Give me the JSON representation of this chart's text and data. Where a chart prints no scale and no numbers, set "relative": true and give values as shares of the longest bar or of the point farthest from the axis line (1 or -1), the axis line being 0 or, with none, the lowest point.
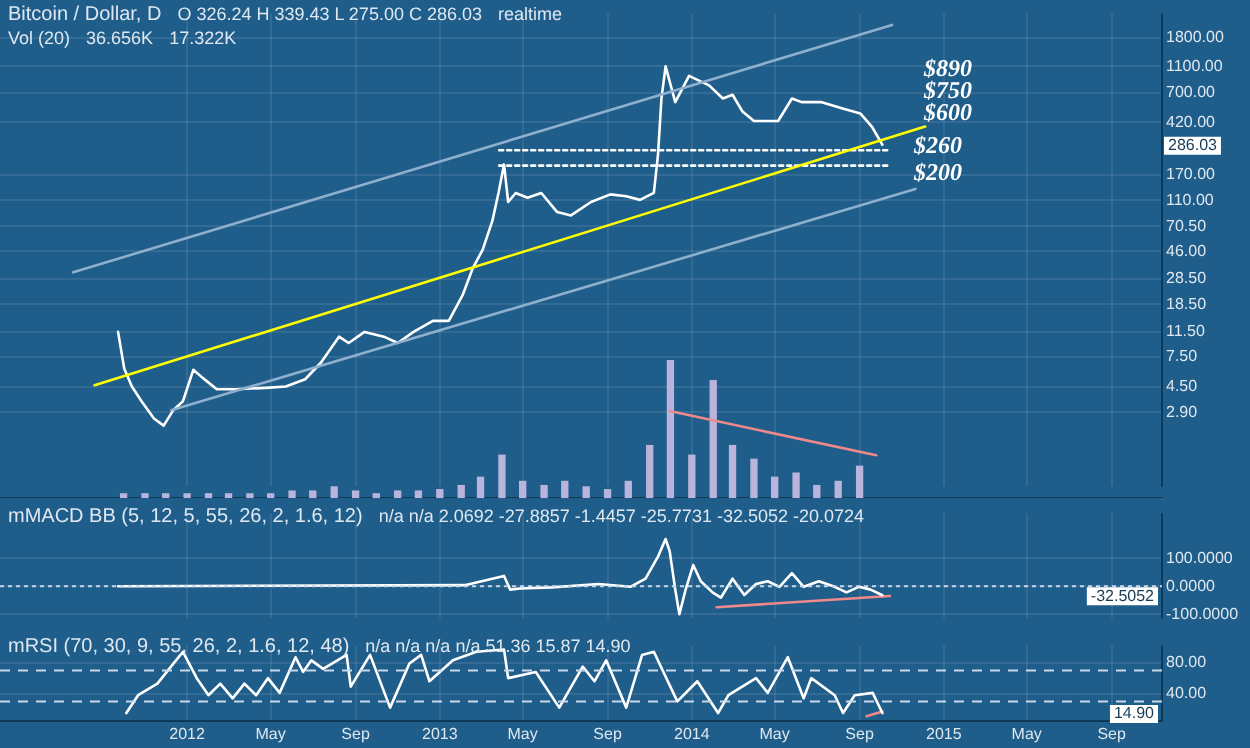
{
  "chart_data": [
    {
      "type": "line",
      "title": "Bitcoin / Dollar, D",
      "log": true,
      "grid": true,
      "tick_labels": "y",
      "annotations": [
        "O 326.24 H 339.43 L 275.00 C 286.03",
        "realtime",
        "$890",
        "$750",
        "$600",
        "286.03"
      ],
      "xlim": [
        "2011-04-05",
        "2015-11-13"
      ],
      "xticks": [
        {
          "value": "2012-01-01",
          "label": null
        },
        {
          "value": "2012-05-01",
          "label": null
        },
        {
          "value": "2012-09-01",
          "label": null
        },
        {
          "value": "2013-01-01",
          "label": null
        },
        {
          "value": "2013-05-01",
          "label": null
        },
        {
          "value": "2013-09-01",
          "label": null
        },
        {
          "value": "2014-01-01",
          "label": null
        },
        {
          "value": "2014-05-01",
          "label": null
        },
        {
          "value": "2014-09-01",
          "label": null
        },
        {
          "value": "2015-01-01",
          "label": null
        },
        {
          "value": "2015-05-01",
          "label": null
        },
        {
          "value": "2015-09-01",
          "label": null
        }
      ],
      "ylim": [
        0.81,
        2720
      ],
      "yticks": [
        {
          "value": 1800,
          "label": "1800.00"
        },
        {
          "value": 1100,
          "label": "1100.00"
        },
        {
          "value": 700,
          "label": "700.00"
        },
        {
          "value": 420,
          "label": "420.00"
        },
        {
          "value": 170,
          "label": "170.00"
        },
        {
          "value": 110,
          "label": "110.00"
        },
        {
          "value": 70.5,
          "label": "70.50"
        },
        {
          "value": 46,
          "label": "46.00"
        },
        {
          "value": 28.5,
          "label": "28.50"
        },
        {
          "value": 18.5,
          "label": "18.50"
        },
        {
          "value": 11.5,
          "label": "11.50"
        },
        {
          "value": 7.5,
          "label": "7.50"
        },
        {
          "value": 4.5,
          "label": "4.50"
        },
        {
          "value": 2.9,
          "label": "2.90"
        }
      ],
      "series": [
        {
          "color": "#8fb0cc",
          "x": [
            "2011-07-20",
            "2014-10-18"
          ],
          "values": [
            32,
            2240
          ]
        },
        {
          "color": "#8fb0cc",
          "x": [
            "2011-12-09",
            "2014-11-21"
          ],
          "values": [
            3.0,
            134
          ]
        },
        {
          "color": "#ffff00",
          "x": [
            "2011-08-20",
            "2014-12-05"
          ],
          "values": [
            4.6,
            391
          ]
        },
        {
          "name": "$260",
          "color": "#ffffff",
          "line_style": "dotted",
          "x": [
            "2013-03-28",
            "2014-10-15"
          ],
          "values": [
            260,
            260
          ]
        },
        {
          "name": "$200",
          "color": "#ffffff",
          "line_style": "dotted",
          "x": [
            "2013-03-28",
            "2014-10-15"
          ],
          "values": [
            200,
            200
          ]
        },
        {
          "color": "#ffffff",
          "x": [
            "2011-09-23",
            "2011-10-02",
            "2011-10-13",
            "2011-10-27",
            "2011-11-14",
            "2011-11-28",
            "2011-12-12",
            "2011-12-26",
            "2012-01-10",
            "2012-01-24",
            "2012-02-13",
            "2012-03-12",
            "2012-04-24",
            "2012-05-23",
            "2012-06-20",
            "2012-07-13",
            "2012-08-08",
            "2012-08-22",
            "2012-09-14",
            "2012-10-12",
            "2012-11-01",
            "2012-11-24",
            "2012-12-22",
            "2013-01-14",
            "2013-02-03",
            "2013-02-18",
            "2013-03-04",
            "2013-03-18",
            "2013-03-27",
            "2013-04-04",
            "2013-04-10",
            "2013-04-21",
            "2013-05-08",
            "2013-05-28",
            "2013-06-20",
            "2013-07-10",
            "2013-08-08",
            "2013-09-05",
            "2013-09-28",
            "2013-10-18",
            "2013-11-07",
            "2013-11-13",
            "2013-11-18",
            "2013-11-24",
            "2013-12-08",
            "2013-12-28",
            "2014-01-26",
            "2014-02-15",
            "2014-03-01",
            "2014-03-15",
            "2014-04-01",
            "2014-04-16",
            "2014-05-06",
            "2014-05-26",
            "2014-06-09",
            "2014-07-07",
            "2014-08-05",
            "2014-09-02",
            "2014-09-19",
            "2014-10-04"
          ],
          "values": [
            11.5,
            6.1,
            4.5,
            3.5,
            2.6,
            2.3,
            3.0,
            3.5,
            6.0,
            5.2,
            4.3,
            4.3,
            4.4,
            4.5,
            5.1,
            6.8,
            10.6,
            9.5,
            11.5,
            10.6,
            9.5,
            11.5,
            13.9,
            13.9,
            21.6,
            34.6,
            47,
            77,
            125,
            204,
            107,
            125,
            115,
            125,
            90,
            85,
            107,
            122,
            118,
            111,
            125,
            240,
            633,
            1100,
            595,
            934,
            793,
            633,
            675,
            509,
            430,
            430,
            430,
            633,
            595,
            595,
            537,
            490,
            389,
            286.03
          ]
        }
      ]
    },
    {
      "type": "bar",
      "relative": true,
      "tick_labels": false,
      "annotations": [
        "Vol (20)",
        "36.656K",
        "17.322K"
      ],
      "xlim": [
        "2011-04-05",
        "2015-11-13"
      ],
      "series": [
        {
          "color": "#b8b4dc",
          "x": [
            "2011-10",
            "2011-11",
            "2011-12",
            "2012-01",
            "2012-02",
            "2012-03",
            "2012-04",
            "2012-05",
            "2012-06",
            "2012-07",
            "2012-08",
            "2012-09",
            "2012-10",
            "2012-11",
            "2012-12",
            "2013-01",
            "2013-02",
            "2013-03",
            "2013-04",
            "2013-05",
            "2013-06",
            "2013-07",
            "2013-08",
            "2013-09",
            "2013-10",
            "2013-11",
            "2013-12",
            "2014-01",
            "2014-02",
            "2014-03",
            "2014-04",
            "2014-05",
            "2014-06",
            "2014-07",
            "2014-08",
            "2014-09"
          ],
          "values": [
            0.03,
            0.03,
            0.03,
            0.03,
            0.03,
            0.03,
            0.03,
            0.03,
            0.05,
            0.05,
            0.08,
            0.05,
            0.03,
            0.05,
            0.05,
            0.06,
            0.09,
            0.15,
            0.31,
            0.12,
            0.09,
            0.12,
            0.08,
            0.06,
            0.12,
            0.38,
            1,
            0.31,
            0.85,
            0.38,
            0.28,
            0.15,
            0.18,
            0.09,
            0.12,
            0.23
          ]
        },
        {
          "type": "line",
          "color": "#f08a8a",
          "x": [
            "2013-11-30",
            "2014-09-25"
          ],
          "values": [
            0.63,
            0.31
          ]
        }
      ]
    },
    {
      "type": "line",
      "title": "mMACD BB (5, 12, 5, 55, 26, 2, 1.6, 12)",
      "grid": true,
      "tick_labels": "y",
      "annotations": [
        "n/a n/a 2.0692 -27.8857 -1.4457 -25.7731 -32.5052 -20.0724",
        "-32.5052"
      ],
      "xlim": [
        "2011-04-05",
        "2015-11-13"
      ],
      "xticks": [
        {
          "value": "2012-01-01",
          "label": null
        },
        {
          "value": "2012-05-01",
          "label": null
        },
        {
          "value": "2012-09-01",
          "label": null
        },
        {
          "value": "2013-01-01",
          "label": null
        },
        {
          "value": "2013-05-01",
          "label": null
        },
        {
          "value": "2013-09-01",
          "label": null
        },
        {
          "value": "2014-01-01",
          "label": null
        },
        {
          "value": "2014-05-01",
          "label": null
        },
        {
          "value": "2014-09-01",
          "label": null
        },
        {
          "value": "2015-01-01",
          "label": null
        },
        {
          "value": "2015-05-01",
          "label": null
        },
        {
          "value": "2015-09-01",
          "label": null
        }
      ],
      "ylim": [
        -115,
        260
      ],
      "yticks": [
        {
          "value": 100,
          "label": "100.0000"
        },
        {
          "value": 0,
          "label": "0.0000"
        },
        {
          "value": -100,
          "label": "-100.0000"
        }
      ],
      "ref_lines": [
        {
          "axis": "y",
          "value": 0,
          "color": "#c8d8e8",
          "line_style": "dotted"
        }
      ],
      "series": [
        {
          "color": "#ffffff",
          "x": [
            "2011-09-23",
            "2013-02-06",
            "2013-04-04",
            "2013-04-13",
            "2013-04-27",
            "2013-06-12",
            "2013-08-19",
            "2013-10-04",
            "2013-10-26",
            "2013-11-13",
            "2013-11-24",
            "2013-11-30",
            "2013-12-08",
            "2013-12-14",
            "2013-12-23",
            "2014-01-03",
            "2014-01-14",
            "2014-01-31",
            "2014-02-12",
            "2014-03-01",
            "2014-03-18",
            "2014-04-04",
            "2014-04-21",
            "2014-05-08",
            "2014-05-26",
            "2014-06-12",
            "2014-07-04",
            "2014-07-27",
            "2014-08-13",
            "2014-08-31",
            "2014-09-17",
            "2014-10-04"
          ],
          "values": [
            0,
            4,
            37,
            -12,
            -8,
            -4,
            8,
            -2,
            27,
            106,
            169,
            125,
            -12,
            -100,
            -12,
            76,
            18,
            -22,
            -41,
            27,
            -31,
            8,
            18,
            -2,
            47,
            -2,
            18,
            -2,
            -22,
            -2,
            -12,
            -32
          ]
        },
        {
          "color": "#f08a8a",
          "x": [
            "2014-02-06",
            "2014-10-15"
          ],
          "values": [
            -75,
            -35
          ]
        }
      ]
    },
    {
      "type": "line",
      "title": "mRSI (70, 30, 9, 55, 26, 2, 1.6, 12, 48)",
      "grid": true,
      "annotations": [
        "n/a n/a n/a n/a 51.36 15.87 14.90",
        "14.90"
      ],
      "xlim": [
        "2011-04-05",
        "2015-11-13"
      ],
      "xticks": [
        {
          "value": "2012-01-01",
          "label": "2012"
        },
        {
          "value": "2012-05-01",
          "label": "May"
        },
        {
          "value": "2012-09-01",
          "label": "Sep"
        },
        {
          "value": "2013-01-01",
          "label": "2013"
        },
        {
          "value": "2013-05-01",
          "label": "May"
        },
        {
          "value": "2013-09-01",
          "label": "Sep"
        },
        {
          "value": "2014-01-01",
          "label": "2014"
        },
        {
          "value": "2014-05-01",
          "label": "May"
        },
        {
          "value": "2014-09-01",
          "label": "Sep"
        },
        {
          "value": "2015-01-01",
          "label": "2015"
        },
        {
          "value": "2015-05-01",
          "label": "May"
        },
        {
          "value": "2015-09-01",
          "label": "Sep"
        }
      ],
      "ylim": [
        5,
        102
      ],
      "yticks": [
        {
          "value": 80,
          "label": "80.00"
        },
        {
          "value": 40,
          "label": "40.00"
        }
      ],
      "ref_lines": [
        {
          "axis": "y",
          "value": 70,
          "color": "#c8d8e8",
          "line_style": "dashed"
        },
        {
          "axis": "y",
          "value": 30,
          "color": "#c8d8e8",
          "line_style": "dashed"
        }
      ],
      "series": [
        {
          "color": "#ffffff",
          "x": [
            "2011-10-05",
            "2011-10-22",
            "2011-11-19",
            "2011-12-06",
            "2011-12-26",
            "2012-01-15",
            "2012-02-01",
            "2012-02-18",
            "2012-03-07",
            "2012-03-24",
            "2012-04-10",
            "2012-04-27",
            "2012-05-14",
            "2012-06-06",
            "2012-06-17",
            "2012-06-29",
            "2012-07-16",
            "2012-08-19",
            "2012-08-25",
            "2012-09-22",
            "2012-10-21",
            "2012-11-18",
            "2012-12-05",
            "2012-12-17",
            "2013-01-20",
            "2013-02-23",
            "2013-04-04",
            "2013-04-10",
            "2013-05-20",
            "2013-06-23",
            "2013-07-27",
            "2013-08-13",
            "2013-08-30",
            "2013-09-28",
            "2013-10-21",
            "2013-11-07",
            "2013-12-11",
            "2014-01-09",
            "2014-02-08",
            "2014-02-23",
            "2014-04-04",
            "2014-04-21",
            "2014-05-20",
            "2014-06-12",
            "2014-06-23",
            "2014-07-27",
            "2014-08-08",
            "2014-08-25",
            "2014-09-20",
            "2014-10-04"
          ],
          "values": [
            15,
            38,
            53,
            72,
            94,
            60,
            38,
            53,
            34,
            53,
            38,
            60,
            41,
            87,
            68,
            83,
            72,
            90,
            49,
            90,
            22,
            79,
            90,
            56,
            83,
            94,
            97,
            60,
            68,
            22,
            75,
            56,
            83,
            22,
            90,
            94,
            30,
            56,
            15,
            38,
            60,
            41,
            87,
            34,
            60,
            38,
            15,
            38,
            41,
            15
          ]
        },
        {
          "color": "#f08a8a",
          "x": [
            "2014-09-11",
            "2014-10-04"
          ],
          "values": [
            11,
            17
          ]
        }
      ]
    }
  ]
}
